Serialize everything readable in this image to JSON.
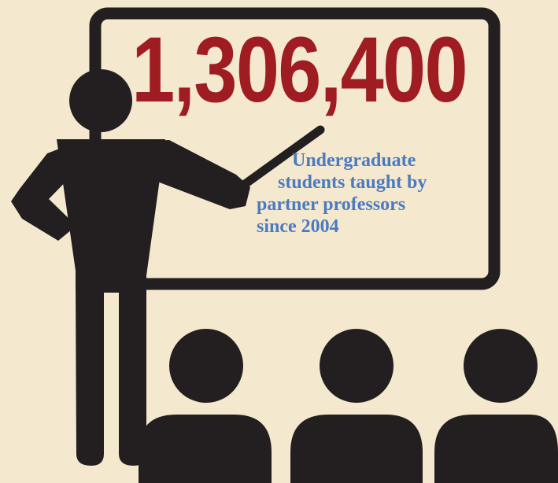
{
  "headline": {
    "number": "1,306,400"
  },
  "caption": {
    "lines": [
      "Undergraduate",
      "students taught by",
      "partner professors",
      "since 2004"
    ]
  },
  "colors": {
    "background": "#f4e8cf",
    "number": "#9e1c22",
    "caption": "#4a7bc0",
    "figures": "#231f20"
  },
  "icons": [
    "whiteboard-icon",
    "teacher-figure-icon",
    "pointer-icon",
    "student-icon"
  ]
}
